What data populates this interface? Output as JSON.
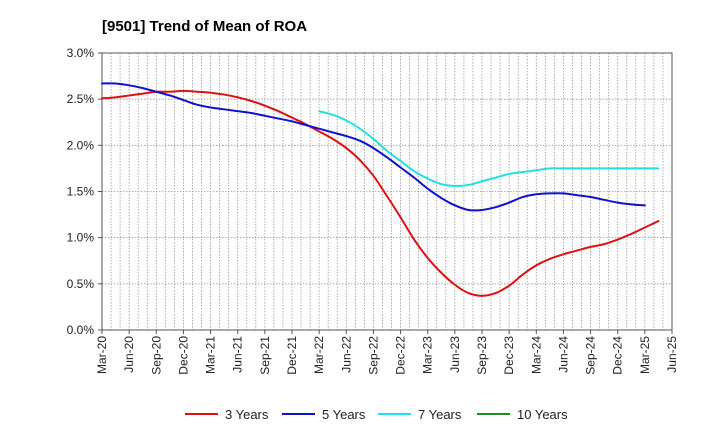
{
  "chart_data": {
    "type": "line",
    "title": "[9501]  Trend of Mean of ROA",
    "xlabel": "",
    "ylabel": "",
    "ylim": [
      0,
      3.0
    ],
    "y_ticks": [
      0,
      0.5,
      1.0,
      1.5,
      2.0,
      2.5,
      3.0
    ],
    "y_tick_labels": [
      "0.0%",
      "0.5%",
      "1.0%",
      "1.5%",
      "2.0%",
      "2.5%",
      "3.0%"
    ],
    "x_tick_labels": [
      "Mar-20",
      "Jun-20",
      "Sep-20",
      "Dec-20",
      "Mar-21",
      "Jun-21",
      "Sep-21",
      "Dec-21",
      "Mar-22",
      "Jun-22",
      "Sep-22",
      "Dec-22",
      "Mar-23",
      "Jun-23",
      "Sep-23",
      "Dec-23",
      "Mar-24",
      "Jun-24",
      "Sep-24",
      "Dec-24",
      "Mar-25",
      "Jun-25"
    ],
    "x_range_quarters": [
      0,
      21
    ],
    "grid": true,
    "legend_position": "bottom",
    "series": [
      {
        "name": "3 Years",
        "color": "#dd1111",
        "start_quarter": 0,
        "values": [
          2.51,
          2.52,
          2.54,
          2.56,
          2.58,
          2.58,
          2.59,
          2.58,
          2.57,
          2.55,
          2.52,
          2.48,
          2.43,
          2.37,
          2.3,
          2.23,
          2.15,
          2.07,
          1.97,
          1.84,
          1.67,
          1.45,
          1.22,
          0.98,
          0.78,
          0.62,
          0.49,
          0.4,
          0.37,
          0.4,
          0.48,
          0.6,
          0.7,
          0.77,
          0.82,
          0.86,
          0.9,
          0.93,
          0.98,
          1.04,
          1.11,
          1.18
        ]
      },
      {
        "name": "5 Years",
        "color": "#1111cc",
        "start_quarter": 0,
        "values": [
          2.67,
          2.67,
          2.65,
          2.62,
          2.58,
          2.54,
          2.49,
          2.44,
          2.41,
          2.39,
          2.37,
          2.35,
          2.32,
          2.29,
          2.26,
          2.22,
          2.18,
          2.14,
          2.1,
          2.05,
          1.97,
          1.87,
          1.76,
          1.65,
          1.53,
          1.43,
          1.35,
          1.3,
          1.3,
          1.33,
          1.38,
          1.44,
          1.47,
          1.48,
          1.48,
          1.46,
          1.44,
          1.41,
          1.38,
          1.36,
          1.35
        ]
      },
      {
        "name": "7 Years",
        "color": "#22e0e0",
        "start_quarter": 8,
        "values": [
          2.37,
          2.33,
          2.27,
          2.18,
          2.07,
          1.94,
          1.83,
          1.72,
          1.64,
          1.58,
          1.56,
          1.57,
          1.61,
          1.65,
          1.69,
          1.71,
          1.73,
          1.75,
          1.75,
          1.75,
          1.75,
          1.75,
          1.75,
          1.75,
          1.75,
          1.75
        ]
      },
      {
        "name": "10 Years",
        "color": "#228b22",
        "start_quarter": 0,
        "values": []
      }
    ]
  }
}
